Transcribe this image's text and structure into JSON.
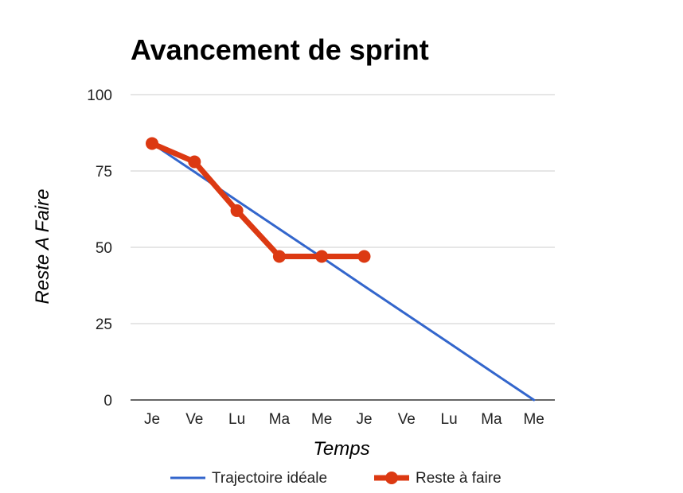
{
  "chart_data": {
    "type": "line",
    "title": "Avancement de sprint",
    "xlabel": "Temps",
    "ylabel": "Reste A Faire",
    "categories": [
      "Je",
      "Ve",
      "Lu",
      "Ma",
      "Me",
      "Je",
      "Ve",
      "Lu",
      "Ma",
      "Me"
    ],
    "ylim": [
      0,
      100
    ],
    "yticks": [
      "0",
      "25",
      "50",
      "75",
      "100"
    ],
    "grid": true,
    "legend_position": "bottom",
    "series": [
      {
        "name": "Trajectoire idéale",
        "color": "#3366cc",
        "marker": false,
        "values": [
          84,
          74.7,
          65.3,
          56,
          46.7,
          37.3,
          28,
          18.7,
          9.3,
          0
        ]
      },
      {
        "name": "Reste à faire",
        "color": "#dc3912",
        "marker": true,
        "values": [
          84,
          78,
          62,
          47,
          47,
          47,
          null,
          null,
          null,
          null
        ]
      }
    ]
  }
}
